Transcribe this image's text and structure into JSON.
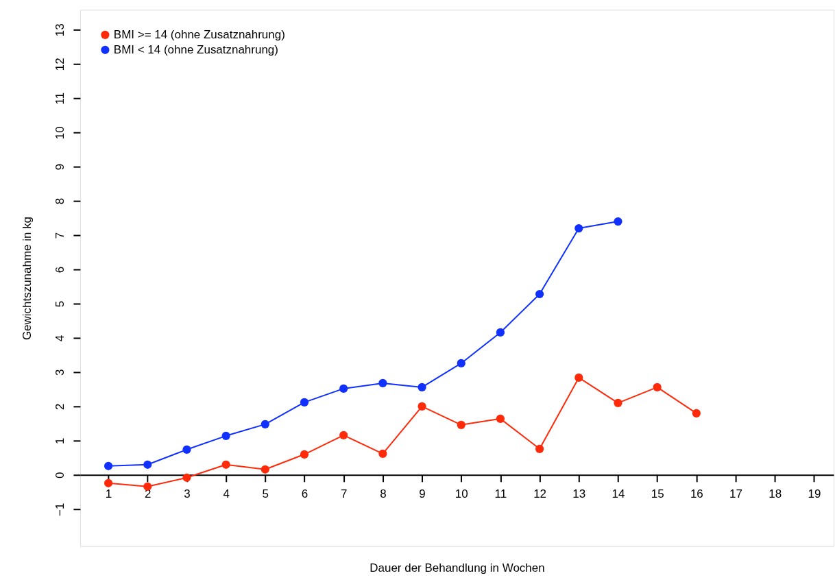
{
  "chart_data": {
    "type": "line",
    "xlabel": "Dauer der Behandlung in Wochen",
    "ylabel": "Gewichtszunahme in kg",
    "x": [
      1,
      2,
      3,
      4,
      5,
      6,
      7,
      8,
      9,
      10,
      11,
      12,
      13,
      14,
      15,
      16
    ],
    "series": [
      {
        "name": "BMI >= 14 (ohne Zusatznahrung)",
        "color": "#ff2a0a",
        "values": [
          -0.24,
          -0.34,
          -0.08,
          0.3,
          0.16,
          0.6,
          1.16,
          0.62,
          2.0,
          1.46,
          1.64,
          0.76,
          2.84,
          2.1,
          2.56,
          1.8
        ]
      },
      {
        "name": "BMI < 14 (ohne Zusatznahrung)",
        "color": "#1030ff",
        "values": [
          0.26,
          0.3,
          0.74,
          1.14,
          1.48,
          2.12,
          2.52,
          2.68,
          2.56,
          3.26,
          4.16,
          5.28,
          7.2,
          7.4,
          null,
          null
        ]
      }
    ],
    "xlim": [
      0.28,
      19.5
    ],
    "xticks": [
      1,
      2,
      3,
      4,
      5,
      6,
      7,
      8,
      9,
      10,
      11,
      12,
      13,
      14,
      15,
      16,
      17,
      18,
      19
    ],
    "ylim": [
      -2.08,
      13.58
    ],
    "yticks": [
      -1,
      0,
      1,
      2,
      3,
      4,
      5,
      6,
      7,
      8,
      9,
      10,
      11,
      12,
      13
    ],
    "grid": false,
    "legend": "top left",
    "marker": "circle",
    "line_style": "solid"
  }
}
